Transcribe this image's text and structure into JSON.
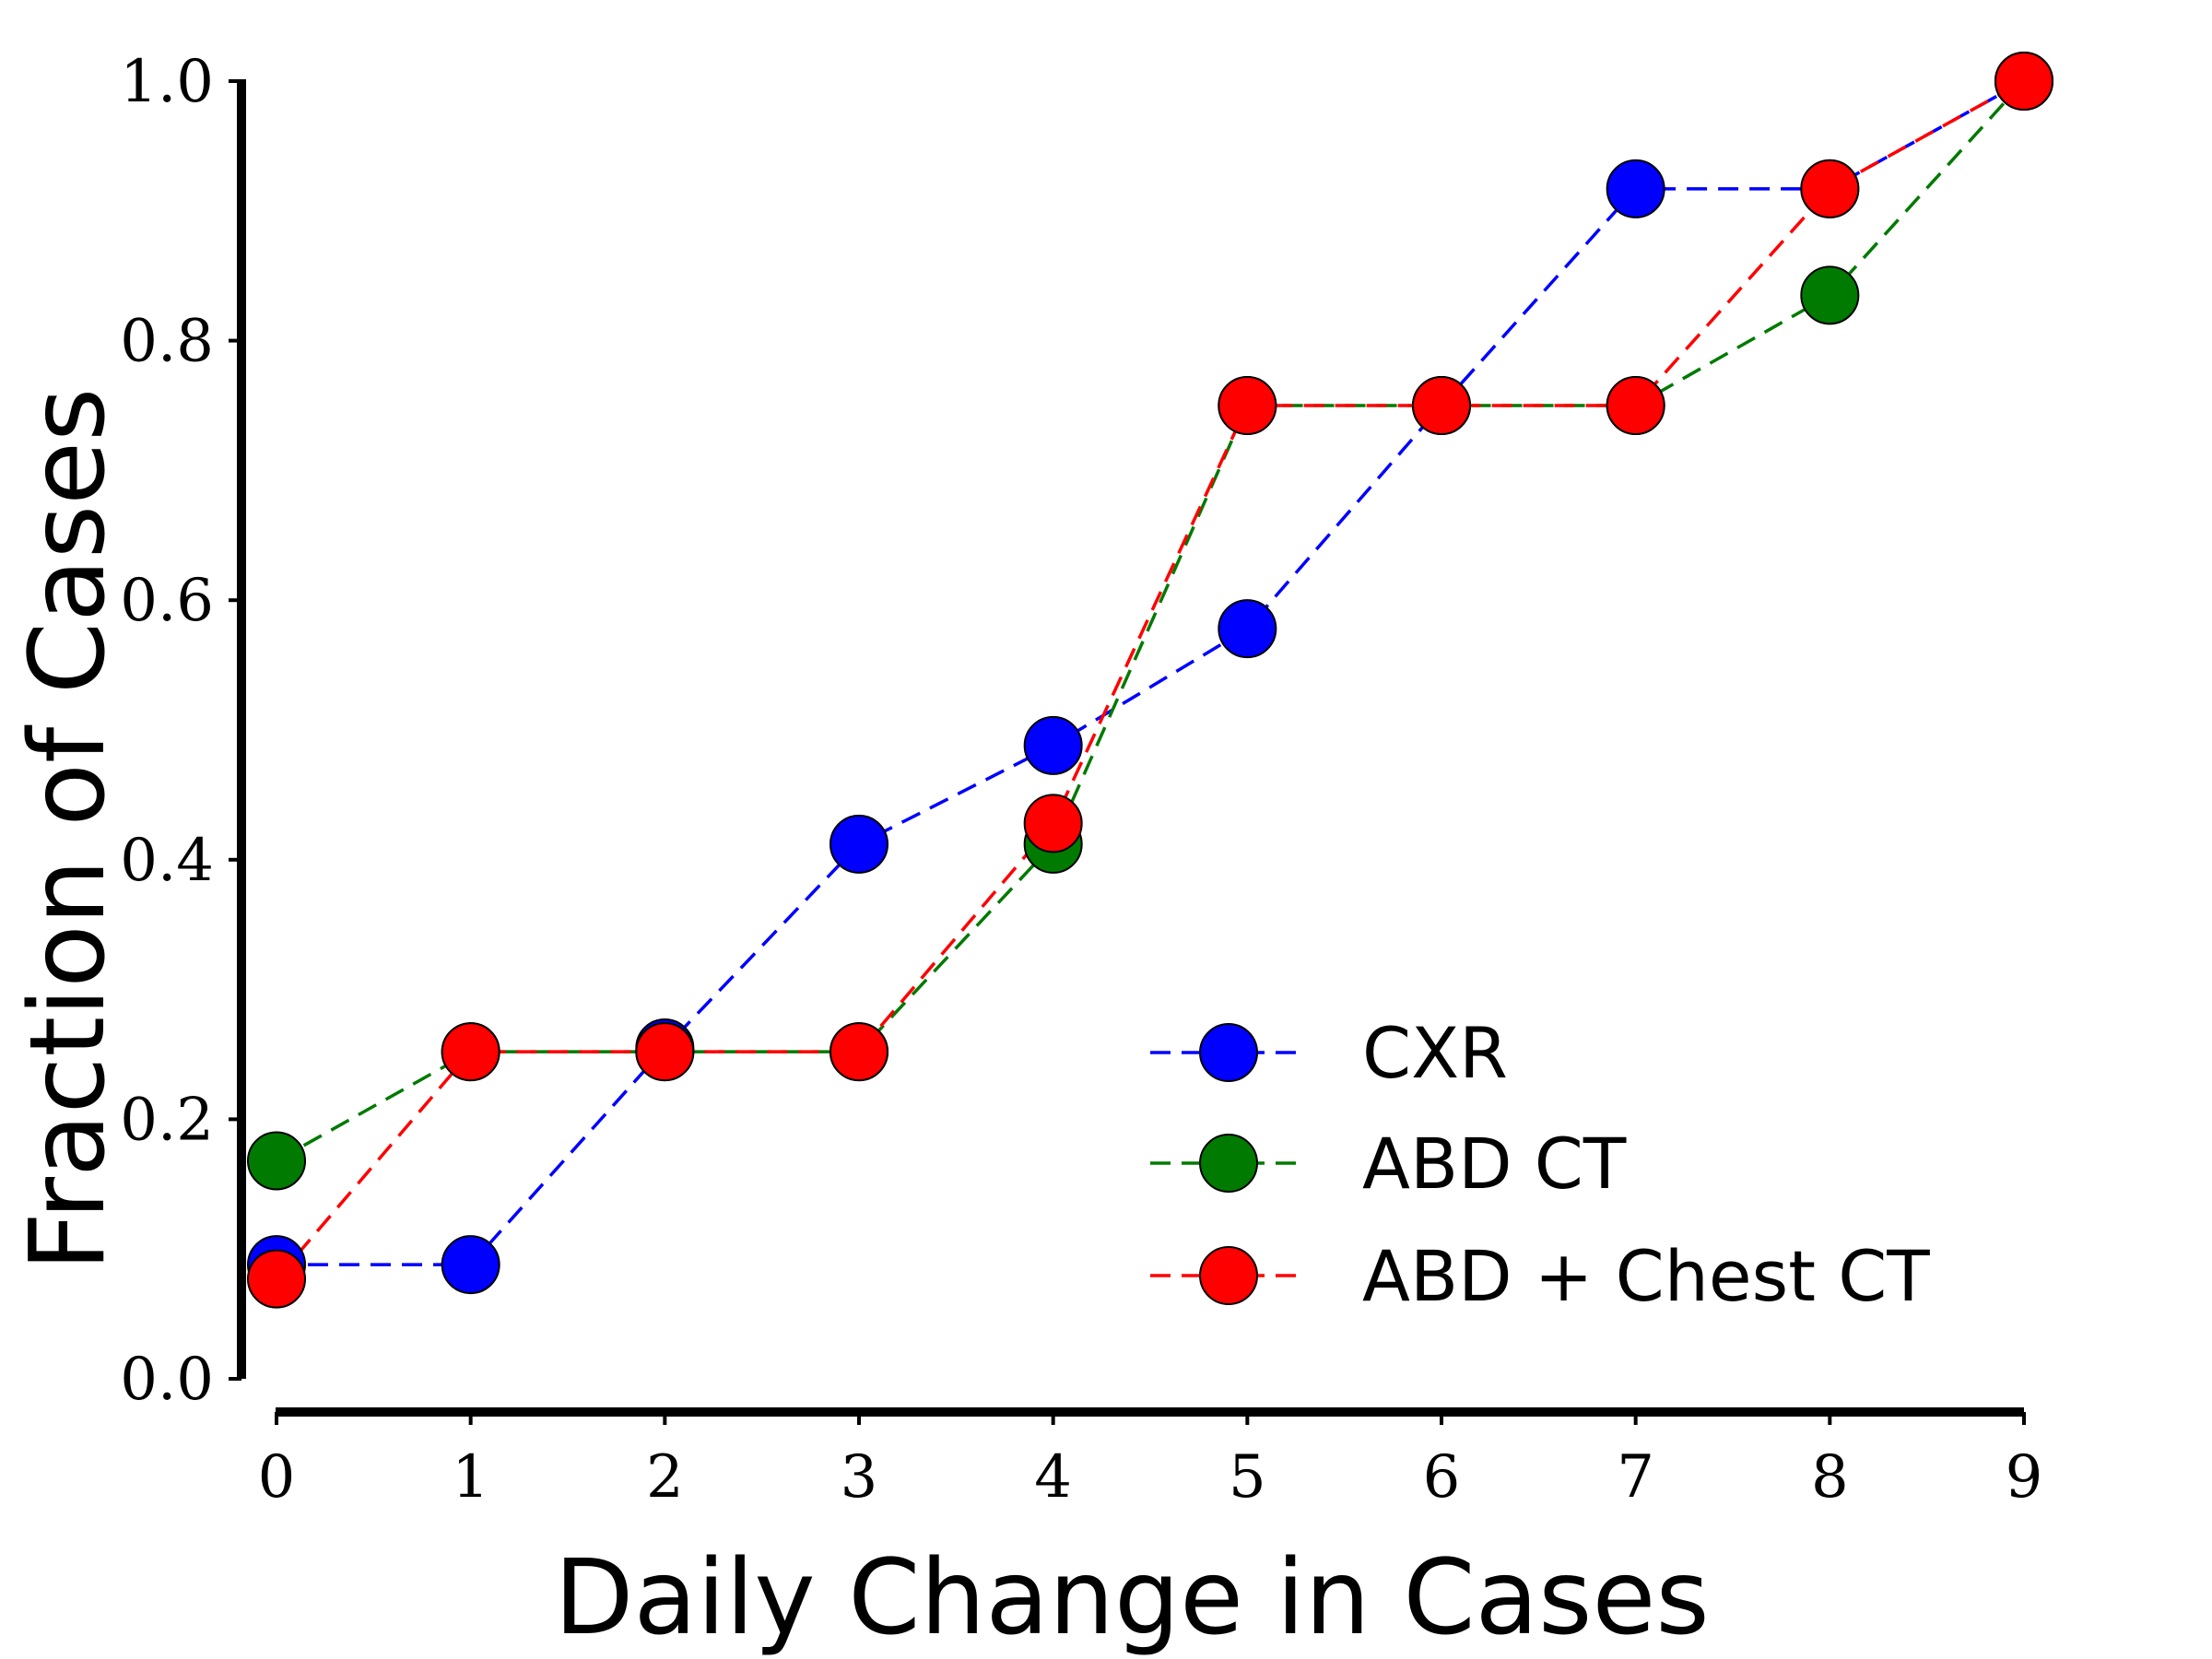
{
  "chart_data": {
    "type": "line",
    "title": "",
    "xlabel": "Daily Change in Cases",
    "ylabel": "Fraction of Cases",
    "xlim": [
      0,
      9
    ],
    "ylim": [
      0,
      1
    ],
    "x_ticks": [
      0,
      1,
      2,
      3,
      4,
      5,
      6,
      7,
      8,
      9
    ],
    "x_tick_labels": [
      "0",
      "1",
      "2",
      "3",
      "4",
      "5",
      "6",
      "7",
      "8",
      "9"
    ],
    "y_ticks": [
      0,
      0.2,
      0.4,
      0.6,
      0.8,
      1.0
    ],
    "y_tick_labels": [
      "0.0",
      "0.2",
      "0.4",
      "0.6",
      "0.8",
      "1.0"
    ],
    "grid": false,
    "legend_position": "lower-right",
    "line_style": "dashed",
    "marker": "circle",
    "x": [
      0,
      1,
      2,
      3,
      4,
      5,
      6,
      7,
      8,
      9
    ],
    "series": [
      {
        "name": "CXR",
        "color": "#0000ff",
        "values": [
          0.088,
          0.088,
          0.255,
          0.412,
          0.488,
          0.578,
          0.75,
          0.917,
          0.917,
          1.0
        ]
      },
      {
        "name": "ABD CT",
        "color": "#007a00",
        "values": [
          0.168,
          0.252,
          0.252,
          0.252,
          0.412,
          0.75,
          0.75,
          0.75,
          0.835,
          1.0
        ]
      },
      {
        "name": "ABD + Chest CT",
        "color": "#ff0000",
        "values": [
          0.077,
          0.252,
          0.252,
          0.252,
          0.428,
          0.75,
          0.75,
          0.75,
          0.917,
          1.0
        ]
      }
    ]
  }
}
